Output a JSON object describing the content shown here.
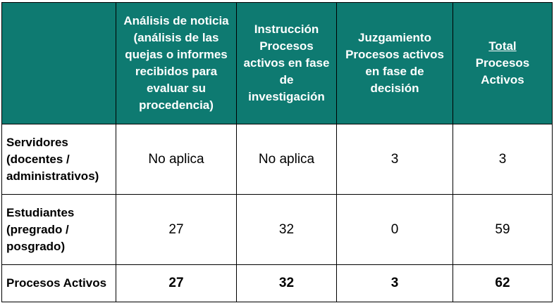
{
  "header": {
    "corner": "",
    "col1": "Análisis de noticia (análisis de las quejas o informes recibidos para evaluar su procedencia)",
    "col2": "Instrucción Procesos activos en fase de investigación",
    "col3": "Juzgamiento Procesos activos en fase de decisión",
    "col4_underlined": "Total",
    "col4_rest": "Procesos Activos"
  },
  "rows": [
    {
      "label": "Servidores (docentes / administrativos)",
      "c1": "No aplica",
      "c2": "No aplica",
      "c3": "3",
      "c4": "3"
    },
    {
      "label": "Estudiantes (pregrado / posgrado)",
      "c1": "27",
      "c2": "32",
      "c3": "0",
      "c4": "59"
    },
    {
      "label": "Procesos Activos",
      "c1": "27",
      "c2": "32",
      "c3": "3",
      "c4": "62"
    }
  ],
  "colors": {
    "header_bg": "#0e7a71",
    "header_text": "#ffffff",
    "border": "#000000"
  }
}
